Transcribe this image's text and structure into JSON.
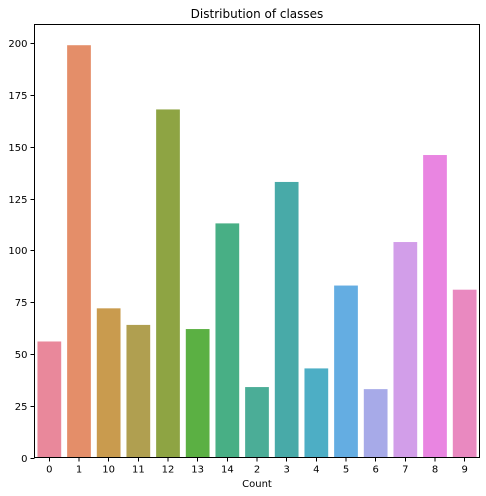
{
  "chart_data": {
    "type": "bar",
    "title": "Distribution of classes",
    "xlabel": "Count",
    "ylabel": "",
    "categories": [
      "0",
      "1",
      "10",
      "11",
      "12",
      "13",
      "14",
      "2",
      "3",
      "4",
      "5",
      "6",
      "7",
      "8",
      "9"
    ],
    "values": [
      56,
      199,
      72,
      64,
      168,
      62,
      113,
      34,
      133,
      43,
      83,
      33,
      104,
      146,
      81
    ],
    "ylim": [
      0,
      209
    ],
    "yticks": [
      "0",
      "25",
      "50",
      "75",
      "100",
      "125",
      "150",
      "175",
      "200"
    ],
    "grid": false,
    "colors": [
      "#e9889b",
      "#e48e69",
      "#c99b4e",
      "#b09f50",
      "#8ea443",
      "#5bb043",
      "#48af85",
      "#4bad97",
      "#48aaa8",
      "#4daec5",
      "#64ade2",
      "#a7aae8",
      "#d29ee9",
      "#e985e1",
      "#e989c0"
    ]
  }
}
